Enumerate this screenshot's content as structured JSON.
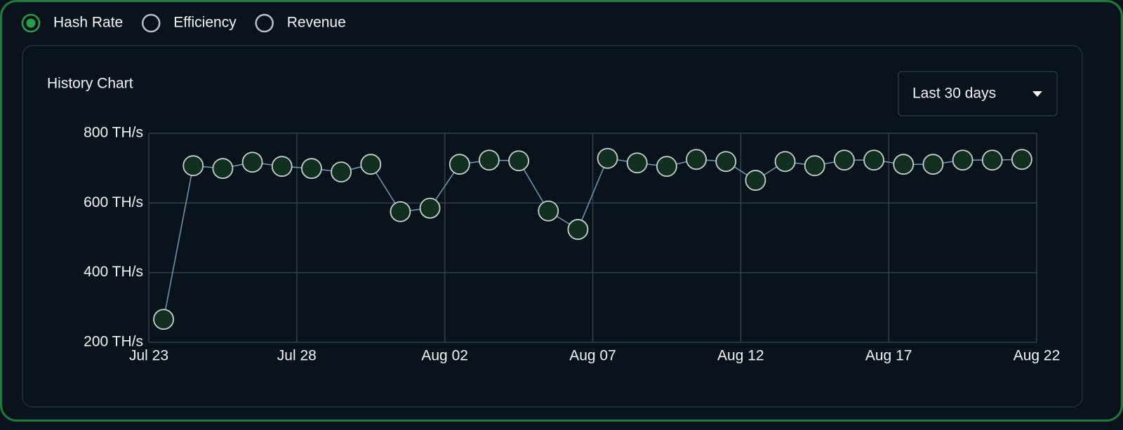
{
  "tabs": [
    {
      "label": "Hash Rate",
      "selected": true
    },
    {
      "label": "Efficiency",
      "selected": false
    },
    {
      "label": "Revenue",
      "selected": false
    }
  ],
  "card": {
    "title": "History Chart",
    "range": "Last 30 days"
  },
  "chart_data": {
    "type": "line",
    "x": [
      "Jul 23",
      "Jul 24",
      "Jul 25",
      "Jul 26",
      "Jul 27",
      "Jul 28",
      "Jul 29",
      "Jul 30",
      "Jul 31",
      "Aug 01",
      "Aug 02",
      "Aug 03",
      "Aug 04",
      "Aug 05",
      "Aug 06",
      "Aug 07",
      "Aug 08",
      "Aug 09",
      "Aug 10",
      "Aug 11",
      "Aug 12",
      "Aug 13",
      "Aug 14",
      "Aug 15",
      "Aug 16",
      "Aug 17",
      "Aug 18",
      "Aug 19",
      "Aug 20",
      "Aug 21"
    ],
    "series": [
      {
        "name": "Hash Rate",
        "color": "#6f9cbd",
        "values": [
          266,
          707,
          699,
          717,
          705,
          699,
          689,
          711,
          575,
          585,
          711,
          723,
          721,
          577,
          524,
          728,
          715,
          705,
          725,
          719,
          665,
          719,
          707,
          723,
          723,
          711,
          711,
          723,
          723,
          725
        ]
      }
    ],
    "xlim": [
      "Jul 23",
      "Aug 22"
    ],
    "xticks": [
      "Jul 23",
      "Jul 28",
      "Aug 02",
      "Aug 07",
      "Aug 12",
      "Aug 17",
      "Aug 22"
    ],
    "ylim": [
      200,
      800
    ],
    "yticks": [
      {
        "value": 200,
        "label": "200 TH/s"
      },
      {
        "value": 400,
        "label": "400 TH/s"
      },
      {
        "value": 600,
        "label": "600 TH/s"
      },
      {
        "value": 800,
        "label": "800 TH/s"
      }
    ],
    "grid": true
  }
}
